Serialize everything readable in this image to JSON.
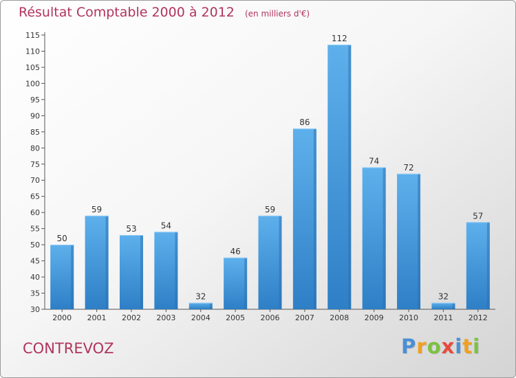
{
  "chart_data": {
    "type": "bar",
    "title": "Résultat Comptable 2000 à 2012",
    "unit_note": "(en milliers d'€)",
    "categories": [
      "2000",
      "2001",
      "2002",
      "2003",
      "2004",
      "2005",
      "2006",
      "2007",
      "2008",
      "2009",
      "2010",
      "2011",
      "2012"
    ],
    "values": [
      50,
      59,
      53,
      54,
      32,
      46,
      59,
      86,
      112,
      74,
      72,
      32,
      57
    ],
    "ylim": [
      30,
      115
    ],
    "ytick_step": 5,
    "xlabel": "",
    "ylabel": "",
    "grid": false,
    "bar_color": "#4a9de0"
  },
  "commune": "CONTREVOZ",
  "brand": {
    "letters": [
      "P",
      "r",
      "o",
      "x",
      "i",
      "t",
      "i"
    ],
    "colors": [
      "#4a8fd6",
      "#f0a020",
      "#7cc242",
      "#e84a3c",
      "#4a8fd6",
      "#f0a020",
      "#7cc242"
    ]
  }
}
